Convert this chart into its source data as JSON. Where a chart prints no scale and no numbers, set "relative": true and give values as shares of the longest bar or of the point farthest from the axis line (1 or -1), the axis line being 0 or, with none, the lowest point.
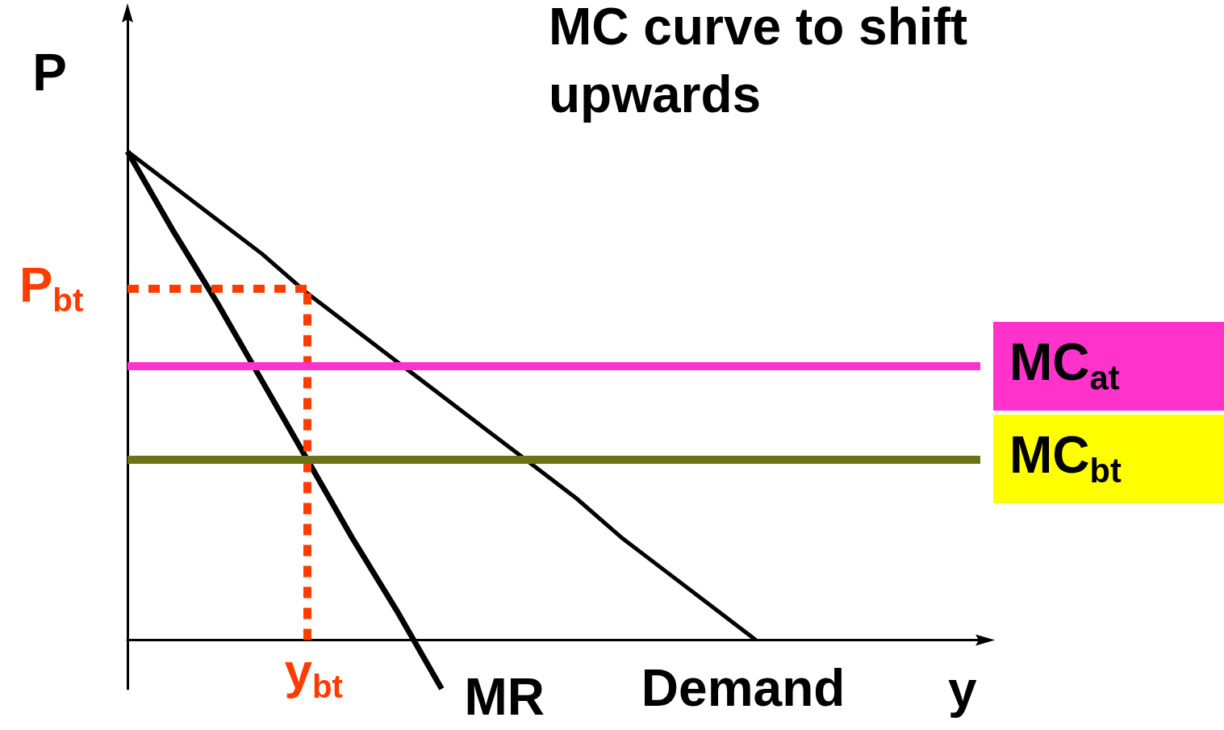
{
  "chart_data": {
    "type": "line",
    "title": "MC curve to shift upwards",
    "xlabel": "y",
    "ylabel": "P",
    "relative": true,
    "legend": false,
    "grid": false,
    "marker": "none",
    "categories": [
      null,
      null,
      null,
      null,
      null,
      null,
      null,
      null,
      null,
      null,
      null,
      null,
      null,
      null,
      null,
      null,
      null,
      null,
      null,
      null
    ],
    "series": [
      {
        "name": "Demand",
        "color": "#000000",
        "values": [
          1,
          0.93,
          0.86,
          0.79,
          0.71,
          0.64,
          0.57,
          0.5,
          0.43,
          0.36,
          0.29,
          0.21,
          0.14,
          0.07,
          0,
          null,
          null,
          null,
          null,
          null
        ]
      },
      {
        "name": "MR",
        "color": "#000000",
        "values": [
          1,
          0.84,
          0.69,
          0.53,
          0.37,
          0.21,
          0.06,
          -0.1,
          null,
          null,
          null,
          null,
          null,
          null,
          null,
          null,
          null,
          null,
          null,
          null
        ]
      }
    ],
    "ref_lines": [
      {
        "axis": "y",
        "value": 0.72,
        "label": "P$_{bt}$",
        "color": "#ff3c00",
        "line_style": "dotted"
      },
      {
        "axis": "y",
        "value": 0.56,
        "label": "MC$_{at}$",
        "color": "#ff33cc",
        "line_style": "solid"
      },
      {
        "axis": "y",
        "value": 0.37,
        "label": "MC$_{bt}$",
        "color": "#6b7317",
        "line_style": "solid"
      }
    ],
    "annotations": [
      "y$_{bt}$"
    ]
  }
}
